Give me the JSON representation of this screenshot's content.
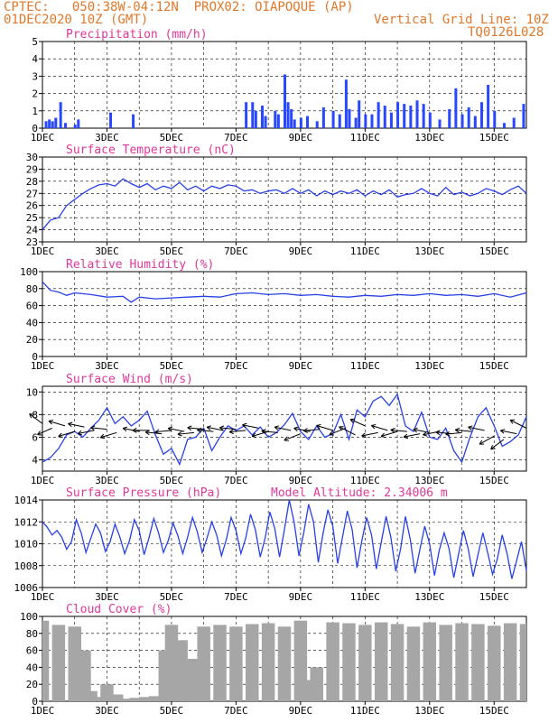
{
  "header": {
    "line1_left": "CPTEC:   050:38W-04:12N  PROX02: OIAPOQUE (AP)",
    "line2_left": "01DEC2020 10Z (GMT)",
    "line2_right": "Vertical Grid Line: 10Z",
    "line3_right": "TQ0126L028"
  },
  "colors": {
    "header": "#e0782a",
    "title": "#e0389a",
    "series": "#2840e8",
    "bar": "#2848ff",
    "wind": "#000000",
    "cloud": "#a6a6a6",
    "grid": "#000000"
  },
  "x_ticks": [
    "1DEC",
    "3DEC",
    "5DEC",
    "7DEC",
    "9DEC",
    "11DEC",
    "13DEC",
    "15DEC"
  ],
  "chart_data": [
    {
      "type": "bar",
      "title": "Precipitation (mm/h)",
      "ylim": [
        0,
        5
      ],
      "yticks": [
        "0",
        "1",
        "2",
        "3",
        "4",
        "5"
      ],
      "x_range_days": [
        1,
        16
      ],
      "x": [
        1.1,
        1.2,
        1.3,
        1.4,
        1.55,
        1.7,
        2.0,
        2.1,
        3.1,
        3.8,
        7.3,
        7.5,
        7.6,
        7.8,
        7.9,
        8.2,
        8.3,
        8.5,
        8.6,
        8.7,
        8.8,
        9.0,
        9.2,
        9.5,
        9.7,
        10.0,
        10.2,
        10.4,
        10.5,
        10.7,
        10.8,
        11.0,
        11.2,
        11.4,
        11.6,
        11.8,
        12.0,
        12.2,
        12.4,
        12.6,
        12.8,
        13.0,
        13.3,
        13.6,
        13.8,
        14.0,
        14.2,
        14.4,
        14.6,
        14.8,
        15.0,
        15.3,
        15.6,
        15.9
      ],
      "values": [
        0.4,
        0.5,
        0.4,
        0.6,
        1.5,
        0.3,
        0.2,
        0.5,
        0.9,
        0.8,
        1.5,
        1.5,
        1.0,
        1.3,
        0.7,
        1.0,
        0.8,
        3.1,
        1.5,
        1.1,
        0.5,
        0.6,
        0.7,
        0.4,
        1.2,
        1.0,
        0.8,
        2.8,
        1.1,
        0.6,
        1.6,
        0.8,
        0.8,
        1.5,
        1.3,
        0.9,
        1.5,
        1.4,
        1.3,
        1.6,
        1.4,
        0.9,
        0.5,
        1.1,
        2.3,
        0.8,
        1.2,
        0.7,
        1.5,
        2.5,
        1.0,
        0.3,
        0.6,
        1.4
      ]
    },
    {
      "type": "line",
      "title": "Surface Temperature (nC)",
      "ylim": [
        23,
        30
      ],
      "yticks": [
        "23",
        "24",
        "25",
        "26",
        "27",
        "28",
        "29",
        "30"
      ],
      "x": [
        1,
        1.25,
        1.5,
        1.75,
        2,
        2.25,
        2.5,
        2.75,
        3,
        3.25,
        3.5,
        3.75,
        4,
        4.25,
        4.5,
        4.75,
        5,
        5.25,
        5.5,
        5.75,
        6,
        6.25,
        6.5,
        6.75,
        7,
        7.25,
        7.5,
        7.75,
        8,
        8.25,
        8.5,
        8.75,
        9,
        9.25,
        9.5,
        9.75,
        10,
        10.25,
        10.5,
        10.75,
        11,
        11.25,
        11.5,
        11.75,
        12,
        12.25,
        12.5,
        12.75,
        13,
        13.25,
        13.5,
        13.75,
        14,
        14.25,
        14.5,
        14.75,
        15,
        15.25,
        15.5,
        15.75,
        16
      ],
      "values": [
        24.0,
        24.8,
        25.0,
        26.0,
        26.5,
        27.0,
        27.4,
        27.7,
        27.8,
        27.6,
        28.2,
        27.8,
        27.5,
        27.8,
        27.3,
        27.6,
        27.4,
        27.9,
        27.3,
        27.6,
        27.2,
        27.6,
        27.4,
        27.7,
        27.6,
        27.2,
        27.3,
        27.0,
        27.2,
        27.3,
        27.0,
        27.4,
        27.0,
        27.3,
        26.8,
        27.2,
        26.9,
        27.2,
        27.0,
        27.3,
        26.8,
        27.2,
        26.9,
        27.3,
        26.7,
        26.9,
        27.0,
        27.4,
        27.0,
        26.8,
        27.5,
        26.9,
        27.1,
        26.8,
        27.0,
        27.4,
        27.2,
        26.9,
        27.3,
        27.6,
        27.0
      ]
    },
    {
      "type": "line",
      "title": "Relative Humidity (%)",
      "ylim": [
        0,
        100
      ],
      "yticks": [
        "0",
        "20",
        "40",
        "60",
        "80",
        "100"
      ],
      "x": [
        1,
        1.25,
        1.5,
        1.75,
        2,
        2.5,
        3,
        3.5,
        3.75,
        4,
        4.5,
        5,
        5.5,
        6,
        6.5,
        7,
        7.5,
        8,
        8.5,
        9,
        9.5,
        10,
        10.5,
        11,
        11.5,
        12,
        12.5,
        13,
        13.5,
        14,
        14.5,
        15,
        15.5,
        16
      ],
      "values": [
        88,
        78,
        76,
        72,
        75,
        73,
        70,
        71,
        64,
        70,
        68,
        69,
        70,
        71,
        70,
        74,
        75,
        73,
        74,
        72,
        73,
        71,
        70,
        72,
        71,
        73,
        72,
        74,
        72,
        73,
        71,
        74,
        70,
        75
      ]
    },
    {
      "type": "line",
      "title": "Surface Wind (m/s)",
      "ylim": [
        3,
        10.5
      ],
      "yticks": [
        "4",
        "6",
        "8",
        "10"
      ],
      "x": [
        1,
        1.25,
        1.5,
        1.75,
        2,
        2.25,
        2.5,
        2.75,
        3,
        3.25,
        3.5,
        3.75,
        4,
        4.25,
        4.5,
        4.75,
        5,
        5.25,
        5.5,
        5.75,
        6,
        6.25,
        6.5,
        6.75,
        7,
        7.25,
        7.5,
        7.75,
        8,
        8.25,
        8.5,
        8.75,
        9,
        9.25,
        9.5,
        9.75,
        10,
        10.25,
        10.5,
        10.75,
        11,
        11.25,
        11.5,
        11.75,
        12,
        12.25,
        12.5,
        12.75,
        13,
        13.25,
        13.5,
        13.75,
        14,
        14.25,
        14.5,
        14.75,
        15,
        15.25,
        15.5,
        15.75,
        16
      ],
      "values": [
        3.8,
        4.2,
        5.0,
        6.2,
        6.5,
        6.0,
        6.8,
        7.5,
        8.6,
        7.2,
        7.8,
        7.0,
        7.5,
        8.3,
        6.2,
        4.5,
        5.0,
        3.6,
        5.8,
        6.0,
        6.8,
        4.8,
        6.0,
        7.0,
        6.6,
        7.0,
        6.2,
        6.9,
        6.0,
        6.4,
        7.1,
        8.1,
        6.5,
        5.8,
        7.0,
        6.0,
        6.3,
        8.0,
        5.8,
        8.4,
        7.8,
        9.2,
        9.6,
        8.8,
        9.8,
        7.0,
        6.5,
        8.2,
        6.0,
        5.8,
        6.8,
        4.8,
        3.8,
        6.0,
        7.8,
        8.6,
        7.0,
        5.2,
        5.6,
        6.2,
        7.8
      ],
      "vectors_x": [
        1,
        1.3,
        1.7,
        2,
        2.3,
        2.6,
        3,
        3.3,
        4,
        4.3,
        4.7,
        5,
        5.4,
        5.7,
        6,
        6.3,
        6.6,
        7,
        7.3,
        7.7,
        8,
        8.3,
        8.7,
        9,
        9.3,
        9.6,
        10,
        10.4,
        10.7,
        11,
        11.4,
        11.7,
        12,
        12.3,
        12.7,
        13,
        13.3,
        13.7,
        14,
        14.3,
        14.7,
        15,
        15.3,
        15.7,
        16
      ],
      "vectors_speed": [
        7.2,
        6.8,
        7.0,
        6.5,
        6.9,
        6.6,
        6.7,
        6.4,
        6.5,
        6.6,
        6.3,
        6.6,
        6.5,
        6.4,
        6.7,
        6.5,
        6.6,
        6.7,
        6.6,
        6.8,
        6.5,
        6.4,
        6.6,
        6.3,
        6.5,
        6.7,
        6.6,
        6.8,
        6.2,
        7.0,
        6.4,
        6.6,
        6.5,
        6.5,
        6.3,
        6.4,
        6.5,
        6.3,
        6.4,
        6.5,
        6.6,
        6.1,
        5.8,
        6.3,
        6.8
      ],
      "vectors_u": [
        -0.8,
        -0.9,
        -1,
        -1,
        -1,
        -1,
        -1,
        -1,
        -1,
        -1,
        -1,
        -1,
        -1,
        -1,
        -1,
        -1,
        -1,
        -1,
        -1,
        -1,
        -1,
        -1,
        -1,
        -1,
        -1,
        -1,
        -1,
        -1,
        -1,
        -0.9,
        -1,
        -1,
        -1,
        -1,
        -1,
        -1,
        -1,
        -1,
        -1,
        -1,
        -1,
        -0.9,
        -0.8,
        -1,
        -1
      ],
      "vectors_v": [
        0.6,
        -0.4,
        0.3,
        -0.3,
        0.2,
        -0.2,
        0.1,
        -0.3,
        0.2,
        0,
        0.1,
        -0.1,
        0.2,
        -0.1,
        0.1,
        0.1,
        0.2,
        0.1,
        -0.1,
        0.2,
        -0.3,
        0.1,
        0.2,
        -0.4,
        0.2,
        -0.1,
        0.3,
        -0.4,
        0.5,
        0.4,
        -0.2,
        0.3,
        -0.3,
        0.1,
        -0.2,
        0.2,
        -0.2,
        0.1,
        -0.1,
        0.1,
        0.2,
        -0.5,
        -0.6,
        0.2,
        0.5
      ]
    },
    {
      "type": "line",
      "title": "Surface Pressure (hPa)",
      "annotation": "Model Altitude: 2.34006 m",
      "ylim": [
        1006,
        1014
      ],
      "yticks": [
        "1006",
        "1008",
        "1010",
        "1012",
        "1014"
      ],
      "x": [
        1,
        1.15,
        1.3,
        1.45,
        1.6,
        1.75,
        1.9,
        2.05,
        2.2,
        2.35,
        2.5,
        2.65,
        2.8,
        2.95,
        3.1,
        3.25,
        3.4,
        3.55,
        3.7,
        3.85,
        4,
        4.15,
        4.3,
        4.45,
        4.6,
        4.75,
        4.9,
        5.05,
        5.2,
        5.35,
        5.5,
        5.65,
        5.8,
        5.95,
        6.1,
        6.25,
        6.4,
        6.55,
        6.7,
        6.85,
        7,
        7.15,
        7.3,
        7.45,
        7.6,
        7.75,
        7.9,
        8.05,
        8.2,
        8.35,
        8.5,
        8.65,
        8.8,
        8.95,
        9.1,
        9.25,
        9.4,
        9.55,
        9.7,
        9.85,
        10,
        10.15,
        10.3,
        10.45,
        10.6,
        10.75,
        10.9,
        11.05,
        11.2,
        11.35,
        11.5,
        11.65,
        11.8,
        11.95,
        12.1,
        12.25,
        12.4,
        12.55,
        12.7,
        12.85,
        13,
        13.15,
        13.3,
        13.45,
        13.6,
        13.75,
        13.9,
        14.05,
        14.2,
        14.35,
        14.5,
        14.65,
        14.8,
        14.95,
        15.1,
        15.25,
        15.4,
        15.55,
        15.7,
        15.85,
        16
      ],
      "values": [
        1012,
        1011.5,
        1010.8,
        1011.2,
        1010.6,
        1009.5,
        1010.2,
        1012.2,
        1011,
        1009.2,
        1010.5,
        1011.8,
        1011,
        1009.3,
        1010.2,
        1011.8,
        1010.6,
        1009.1,
        1010.3,
        1012.2,
        1011.2,
        1009,
        1010.5,
        1012.3,
        1011,
        1009.2,
        1010.3,
        1011.9,
        1010.7,
        1009.1,
        1010.6,
        1012.4,
        1011.1,
        1009.2,
        1010.5,
        1012,
        1010.8,
        1008.9,
        1010.4,
        1012.4,
        1011.2,
        1009.1,
        1010.5,
        1012.7,
        1011.3,
        1008.8,
        1010.5,
        1012.9,
        1011.4,
        1008.8,
        1011.3,
        1014,
        1012,
        1008.9,
        1011,
        1013.6,
        1012,
        1008.3,
        1011,
        1013.1,
        1011.6,
        1008.2,
        1010.6,
        1013,
        1011.3,
        1007.8,
        1010.3,
        1012.4,
        1010.8,
        1007.7,
        1010.1,
        1012.5,
        1010.6,
        1007.5,
        1009.5,
        1012.5,
        1010.4,
        1007.3,
        1009.5,
        1011.6,
        1010,
        1007.1,
        1009.4,
        1011,
        1009.6,
        1006.9,
        1009.1,
        1011.2,
        1009.5,
        1007,
        1009,
        1011,
        1009.2,
        1007.2,
        1008.6,
        1010.8,
        1009.1,
        1006.8,
        1008.5,
        1010.2,
        1007.5
      ]
    },
    {
      "type": "bar",
      "title": "Cloud Cover (%)",
      "ylim": [
        0,
        100
      ],
      "yticks": [
        "0",
        "20",
        "40",
        "60",
        "80",
        "100"
      ],
      "x": [
        1,
        1.5,
        2,
        2.3,
        2.5,
        2.8,
        3,
        3.3,
        3.6,
        3.9,
        4.2,
        4.5,
        4.8,
        5,
        5.3,
        5.6,
        6,
        6.5,
        7,
        7.5,
        8,
        8.5,
        9,
        9.2,
        9.5,
        10,
        10.5,
        11,
        11.5,
        12,
        12.5,
        13,
        13.5,
        14,
        14.5,
        15,
        15.5,
        16
      ],
      "values": [
        95,
        90,
        88,
        60,
        12,
        5,
        20,
        8,
        3,
        4,
        5,
        6,
        60,
        90,
        72,
        50,
        88,
        90,
        88,
        91,
        92,
        88,
        95,
        25,
        40,
        93,
        92,
        90,
        93,
        91,
        88,
        93,
        90,
        92,
        91,
        89,
        92,
        91
      ]
    }
  ]
}
